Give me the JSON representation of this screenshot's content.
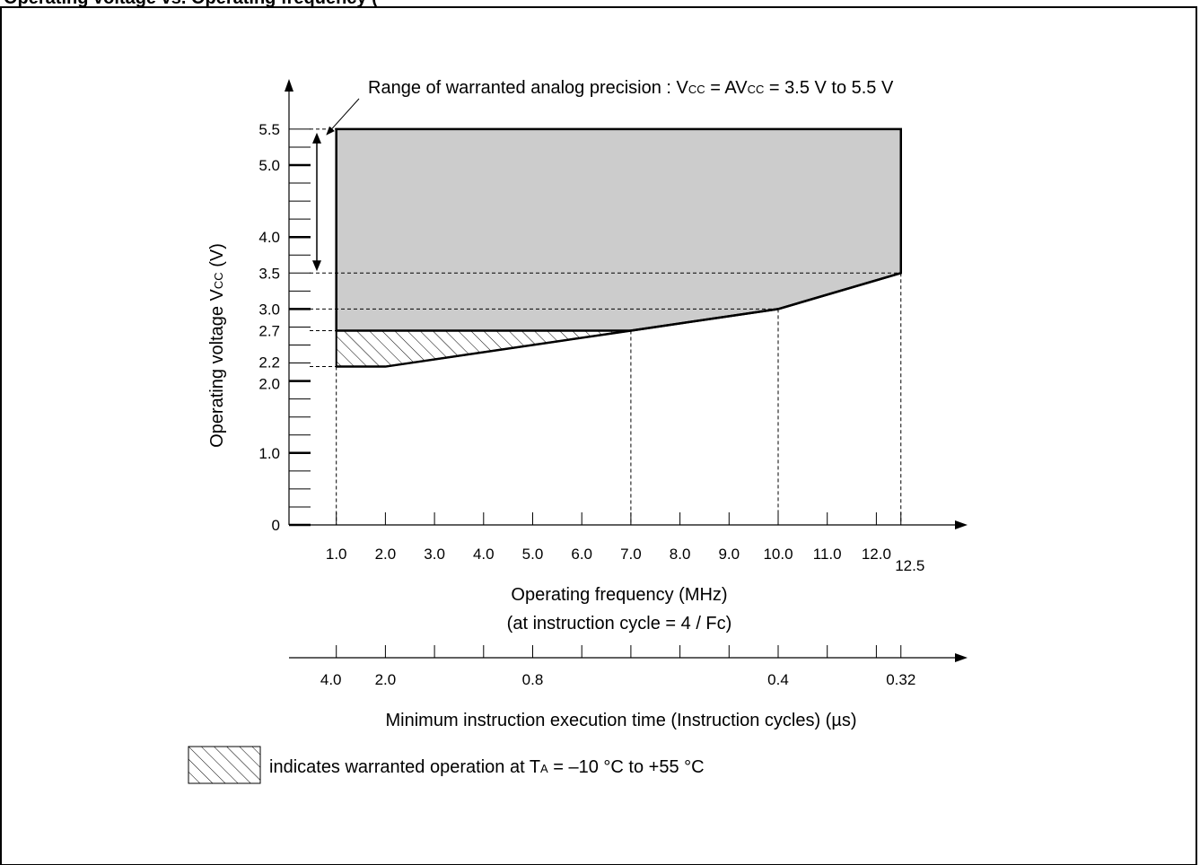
{
  "header_caption": "Operating voltage vs. Operating frequency (",
  "annotation_range": "Range of warranted analog precision : V",
  "annotation_range_sub1": "CC",
  "annotation_range_mid": " = AV",
  "annotation_range_sub2": "CC",
  "annotation_range_end": " = 3.5 V to 5.5 V",
  "legend_text_pre": "indicates warranted operation at T",
  "legend_text_sub": "A",
  "legend_text_post": " = –10 °C to +55 °C",
  "chart_data": {
    "type": "area",
    "ylabel_pre": "Operating voltage V",
    "ylabel_sub": "CC",
    "ylabel_post": " (V)",
    "xlabel": "Operating frequency (MHz)",
    "xlabel_sub": "(at instruction cycle = 4 / Fc)",
    "x2label": "Minimum instruction execution time (Instruction cycles)  (µs)",
    "xlim": [
      0,
      13.5
    ],
    "ylim": [
      0,
      6.0
    ],
    "y_tick_labels": [
      {
        "v": 5.5,
        "t": "5.5"
      },
      {
        "v": 5.0,
        "t": "5.0"
      },
      {
        "v": 4.0,
        "t": "4.0"
      },
      {
        "v": 3.5,
        "t": "3.5"
      },
      {
        "v": 3.0,
        "t": "3.0"
      },
      {
        "v": 2.7,
        "t": "2.7"
      },
      {
        "v": 2.2,
        "t": "2.2"
      },
      {
        "v": 2.0,
        "t": "2.0"
      },
      {
        "v": 1.0,
        "t": "1.0"
      },
      {
        "v": 0,
        "t": "0"
      }
    ],
    "x_tick_labels": [
      {
        "v": 1,
        "t": "1.0"
      },
      {
        "v": 2,
        "t": "2.0"
      },
      {
        "v": 3,
        "t": "3.0"
      },
      {
        "v": 4,
        "t": "4.0"
      },
      {
        "v": 5,
        "t": "5.0"
      },
      {
        "v": 6,
        "t": "6.0"
      },
      {
        "v": 7,
        "t": "7.0"
      },
      {
        "v": 8,
        "t": "8.0"
      },
      {
        "v": 9,
        "t": "9.0"
      },
      {
        "v": 10,
        "t": "10.0"
      },
      {
        "v": 11,
        "t": "11.0"
      },
      {
        "v": 12,
        "t": "12.0"
      },
      {
        "v": 12.5,
        "t": "12.5"
      }
    ],
    "x2_tick_labels": [
      {
        "v": 1,
        "t": "4.0"
      },
      {
        "v": 2,
        "t": "2.0"
      },
      {
        "v": 5,
        "t": "0.8"
      },
      {
        "v": 10,
        "t": "0.4"
      },
      {
        "v": 12.5,
        "t": "0.32"
      }
    ],
    "warranted_region": {
      "boundary": [
        [
          1.0,
          5.5
        ],
        [
          12.5,
          5.5
        ],
        [
          12.5,
          3.5
        ],
        [
          10.0,
          3.0
        ],
        [
          7.0,
          2.7
        ],
        [
          1.0,
          2.7
        ]
      ]
    },
    "hatched_region": {
      "boundary": [
        [
          1.0,
          2.7
        ],
        [
          7.0,
          2.7
        ],
        [
          2.0,
          2.2
        ],
        [
          1.0,
          2.2
        ]
      ]
    },
    "analog_precision_range": [
      3.5,
      5.5
    ],
    "colors": {
      "fill": "#cccccc",
      "line": "#000000"
    }
  }
}
